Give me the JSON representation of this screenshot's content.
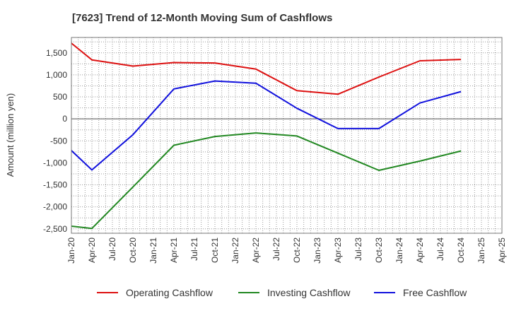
{
  "chart_data": {
    "type": "line",
    "title": "[7623]  Trend of 12-Month Moving Sum of Cashflows",
    "ylabel": "Amount (million yen)",
    "xlabel": "",
    "ylim": [
      -2600,
      1850
    ],
    "yticks": [
      1500,
      1000,
      500,
      0,
      -500,
      -1000,
      -1500,
      -2000,
      -2500
    ],
    "ytick_labels": [
      "1,500",
      "1,000",
      "500",
      "0",
      "-500",
      "-1,000",
      "-1,500",
      "-2,000",
      "-2,500"
    ],
    "categories": [
      "Jan-20",
      "Apr-20",
      "Jul-20",
      "Oct-20",
      "Jan-21",
      "Apr-21",
      "Jul-21",
      "Oct-21",
      "Jan-22",
      "Apr-22",
      "Jul-22",
      "Oct-22",
      "Jan-23",
      "Apr-23",
      "Jul-23",
      "Oct-23",
      "Jan-24",
      "Apr-24",
      "Jul-24",
      "Oct-24",
      "Jan-25",
      "Apr-25"
    ],
    "grid": true,
    "legend_position": "bottom",
    "series": [
      {
        "name": "Operating Cashflow",
        "color": "#dd1111",
        "points": [
          [
            0,
            1720
          ],
          [
            1,
            1340
          ],
          [
            3,
            1200
          ],
          [
            5,
            1280
          ],
          [
            7,
            1270
          ],
          [
            9,
            1130
          ],
          [
            11,
            640
          ],
          [
            13,
            560
          ],
          [
            15,
            950
          ],
          [
            17,
            1320
          ],
          [
            19,
            1350
          ]
        ]
      },
      {
        "name": "Investing Cashflow",
        "color": "#228822",
        "points": [
          [
            0,
            -2440
          ],
          [
            1,
            -2490
          ],
          [
            3,
            -1550
          ],
          [
            5,
            -600
          ],
          [
            7,
            -400
          ],
          [
            9,
            -320
          ],
          [
            11,
            -390
          ],
          [
            13,
            -780
          ],
          [
            15,
            -1170
          ],
          [
            17,
            -960
          ],
          [
            19,
            -730
          ]
        ]
      },
      {
        "name": "Free Cashflow",
        "color": "#1111dd",
        "points": [
          [
            0,
            -720
          ],
          [
            1,
            -1160
          ],
          [
            3,
            -360
          ],
          [
            5,
            680
          ],
          [
            7,
            860
          ],
          [
            9,
            810
          ],
          [
            11,
            240
          ],
          [
            13,
            -220
          ],
          [
            15,
            -220
          ],
          [
            17,
            360
          ],
          [
            19,
            620
          ]
        ]
      }
    ]
  }
}
